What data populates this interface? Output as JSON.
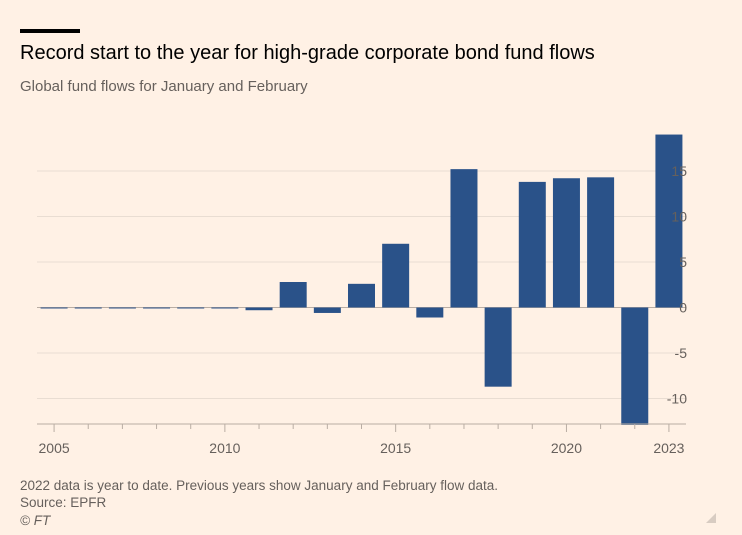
{
  "header": {
    "title": "Record start to the year for high-grade corporate bond fund flows",
    "subtitle": "Global fund flows for January and February"
  },
  "footer": {
    "note": "2022 data is year to date. Previous years show January and February flow data.",
    "source": "Source: EPFR",
    "copyright": "© FT"
  },
  "colors": {
    "background": "#fff1e5",
    "bar": "#2a5289",
    "grid": "#e9ddd2",
    "zero_line": "#b9ada3",
    "axis_text": "#66605c"
  },
  "chart_data": {
    "type": "bar",
    "title": "Record start to the year for high-grade corporate bond fund flows",
    "subtitle": "Global fund flows for January and February",
    "categories": [
      2005,
      2006,
      2007,
      2008,
      2009,
      2010,
      2011,
      2012,
      2013,
      2014,
      2015,
      2016,
      2017,
      2018,
      2019,
      2020,
      2021,
      2022,
      2023
    ],
    "values": [
      0.0,
      -0.1,
      0.0,
      -0.1,
      -0.1,
      -0.1,
      -0.3,
      2.8,
      -0.6,
      2.6,
      7.0,
      -1.1,
      15.2,
      -8.7,
      13.8,
      14.2,
      14.3,
      -12.9,
      19.0
    ],
    "ylim": [
      -12.8,
      19.5
    ],
    "yticks": [
      15,
      10,
      5,
      0,
      -5,
      -10
    ],
    "ytick_labels": [
      "15",
      "10",
      "5",
      "0",
      "-5",
      "-10"
    ],
    "xticks_labeled": [
      2005,
      2010,
      2015,
      2020,
      2023
    ],
    "xtick_labels": [
      "2005",
      "2010",
      "2015",
      "2020",
      "2023"
    ],
    "y_axis_side": "right",
    "grid": true,
    "legend": "none",
    "xlabel": "",
    "ylabel": ""
  }
}
